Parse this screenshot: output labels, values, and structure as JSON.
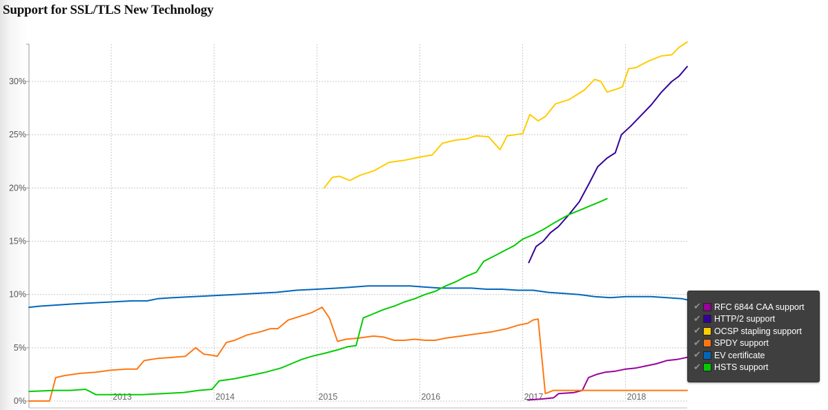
{
  "chart_data": {
    "type": "line",
    "title": "Support for SSL/TLS New Technology",
    "xlabel": "",
    "ylabel": "",
    "x_ticks": [
      "2013",
      "2014",
      "2015",
      "2016",
      "2017",
      "2018"
    ],
    "y_ticks": [
      "0%",
      "5%",
      "10%",
      "15%",
      "20%",
      "25%",
      "30%"
    ],
    "ylim": [
      0,
      33.5
    ],
    "xlim": [
      2012.2,
      2018.6
    ],
    "grid": true,
    "legend_position": "bottom-right",
    "series": [
      {
        "name": "RFC 6844 CAA support",
        "color": "#990099",
        "points": [
          [
            2017.05,
            0.1
          ],
          [
            2017.2,
            0.2
          ],
          [
            2017.3,
            0.3
          ],
          [
            2017.35,
            0.7
          ],
          [
            2017.5,
            0.8
          ],
          [
            2017.58,
            1.0
          ],
          [
            2017.64,
            2.2
          ],
          [
            2017.72,
            2.5
          ],
          [
            2017.8,
            2.7
          ],
          [
            2017.9,
            2.8
          ],
          [
            2018.0,
            3.0
          ],
          [
            2018.1,
            3.1
          ],
          [
            2018.2,
            3.3
          ],
          [
            2018.3,
            3.5
          ],
          [
            2018.4,
            3.8
          ],
          [
            2018.5,
            3.9
          ],
          [
            2018.6,
            4.1
          ]
        ]
      },
      {
        "name": "HTTP/2 support",
        "color": "#330099",
        "points": [
          [
            2017.06,
            13.0
          ],
          [
            2017.13,
            14.5
          ],
          [
            2017.2,
            15.0
          ],
          [
            2017.27,
            15.8
          ],
          [
            2017.35,
            16.4
          ],
          [
            2017.45,
            17.5
          ],
          [
            2017.55,
            18.7
          ],
          [
            2017.65,
            20.5
          ],
          [
            2017.73,
            22.0
          ],
          [
            2017.82,
            22.8
          ],
          [
            2017.9,
            23.3
          ],
          [
            2017.96,
            25.0
          ],
          [
            2018.05,
            25.8
          ],
          [
            2018.15,
            26.8
          ],
          [
            2018.25,
            27.8
          ],
          [
            2018.35,
            29.0
          ],
          [
            2018.45,
            30.0
          ],
          [
            2018.52,
            30.5
          ],
          [
            2018.6,
            31.4
          ]
        ]
      },
      {
        "name": "OCSP stapling support",
        "color": "#ffcc00",
        "points": [
          [
            2015.07,
            20.0
          ],
          [
            2015.15,
            21.0
          ],
          [
            2015.22,
            21.1
          ],
          [
            2015.32,
            20.7
          ],
          [
            2015.42,
            21.2
          ],
          [
            2015.55,
            21.6
          ],
          [
            2015.7,
            22.4
          ],
          [
            2015.85,
            22.6
          ],
          [
            2016.0,
            22.9
          ],
          [
            2016.12,
            23.1
          ],
          [
            2016.22,
            24.2
          ],
          [
            2016.35,
            24.5
          ],
          [
            2016.45,
            24.6
          ],
          [
            2016.55,
            24.9
          ],
          [
            2016.67,
            24.8
          ],
          [
            2016.78,
            23.6
          ],
          [
            2016.85,
            24.9
          ],
          [
            2017.0,
            25.1
          ],
          [
            2017.07,
            26.9
          ],
          [
            2017.15,
            26.3
          ],
          [
            2017.22,
            26.7
          ],
          [
            2017.32,
            27.9
          ],
          [
            2017.45,
            28.3
          ],
          [
            2017.6,
            29.2
          ],
          [
            2017.7,
            30.2
          ],
          [
            2017.76,
            30.0
          ],
          [
            2017.82,
            29.0
          ],
          [
            2017.92,
            29.3
          ],
          [
            2017.97,
            29.5
          ],
          [
            2018.03,
            31.2
          ],
          [
            2018.1,
            31.3
          ],
          [
            2018.22,
            31.9
          ],
          [
            2018.35,
            32.4
          ],
          [
            2018.45,
            32.5
          ],
          [
            2018.52,
            33.2
          ],
          [
            2018.6,
            33.7
          ]
        ]
      },
      {
        "name": "SPDY support",
        "color": "#ff7711",
        "points": [
          [
            2012.2,
            0.0
          ],
          [
            2012.4,
            0.0
          ],
          [
            2012.46,
            2.2
          ],
          [
            2012.55,
            2.4
          ],
          [
            2012.7,
            2.6
          ],
          [
            2012.85,
            2.7
          ],
          [
            2013.0,
            2.9
          ],
          [
            2013.15,
            3.0
          ],
          [
            2013.25,
            3.0
          ],
          [
            2013.32,
            3.8
          ],
          [
            2013.45,
            4.0
          ],
          [
            2013.6,
            4.1
          ],
          [
            2013.72,
            4.2
          ],
          [
            2013.82,
            5.0
          ],
          [
            2013.9,
            4.4
          ],
          [
            2013.98,
            4.3
          ],
          [
            2014.03,
            4.2
          ],
          [
            2014.12,
            5.5
          ],
          [
            2014.2,
            5.7
          ],
          [
            2014.32,
            6.2
          ],
          [
            2014.45,
            6.5
          ],
          [
            2014.55,
            6.8
          ],
          [
            2014.62,
            6.8
          ],
          [
            2014.72,
            7.6
          ],
          [
            2014.82,
            7.9
          ],
          [
            2014.95,
            8.3
          ],
          [
            2015.05,
            8.8
          ],
          [
            2015.12,
            7.8
          ],
          [
            2015.2,
            5.6
          ],
          [
            2015.28,
            5.8
          ],
          [
            2015.4,
            5.9
          ],
          [
            2015.55,
            6.1
          ],
          [
            2015.65,
            6.0
          ],
          [
            2015.75,
            5.7
          ],
          [
            2015.85,
            5.7
          ],
          [
            2015.95,
            5.8
          ],
          [
            2016.05,
            5.7
          ],
          [
            2016.15,
            5.7
          ],
          [
            2016.25,
            5.9
          ],
          [
            2016.4,
            6.1
          ],
          [
            2016.55,
            6.3
          ],
          [
            2016.7,
            6.5
          ],
          [
            2016.85,
            6.8
          ],
          [
            2016.95,
            7.1
          ],
          [
            2017.05,
            7.3
          ],
          [
            2017.1,
            7.6
          ],
          [
            2017.15,
            7.7
          ],
          [
            2017.22,
            0.7
          ],
          [
            2017.3,
            1.0
          ],
          [
            2017.45,
            1.0
          ],
          [
            2017.6,
            1.0
          ],
          [
            2017.75,
            1.0
          ],
          [
            2017.9,
            1.0
          ],
          [
            2018.0,
            1.0
          ],
          [
            2018.15,
            1.0
          ],
          [
            2018.3,
            1.0
          ],
          [
            2018.45,
            1.0
          ],
          [
            2018.6,
            1.0
          ]
        ]
      },
      {
        "name": "EV certificate",
        "color": "#0066bb",
        "points": [
          [
            2012.2,
            8.8
          ],
          [
            2012.3,
            8.9
          ],
          [
            2012.45,
            9.0
          ],
          [
            2012.6,
            9.1
          ],
          [
            2012.8,
            9.2
          ],
          [
            2013.0,
            9.3
          ],
          [
            2013.2,
            9.4
          ],
          [
            2013.35,
            9.4
          ],
          [
            2013.45,
            9.6
          ],
          [
            2013.6,
            9.7
          ],
          [
            2013.8,
            9.8
          ],
          [
            2014.0,
            9.9
          ],
          [
            2014.2,
            10.0
          ],
          [
            2014.4,
            10.1
          ],
          [
            2014.6,
            10.2
          ],
          [
            2014.8,
            10.4
          ],
          [
            2015.0,
            10.5
          ],
          [
            2015.2,
            10.6
          ],
          [
            2015.35,
            10.7
          ],
          [
            2015.5,
            10.8
          ],
          [
            2015.7,
            10.8
          ],
          [
            2015.9,
            10.8
          ],
          [
            2016.05,
            10.7
          ],
          [
            2016.2,
            10.6
          ],
          [
            2016.35,
            10.6
          ],
          [
            2016.5,
            10.6
          ],
          [
            2016.65,
            10.5
          ],
          [
            2016.8,
            10.5
          ],
          [
            2016.95,
            10.4
          ],
          [
            2017.1,
            10.4
          ],
          [
            2017.25,
            10.2
          ],
          [
            2017.4,
            10.1
          ],
          [
            2017.55,
            10.0
          ],
          [
            2017.7,
            9.8
          ],
          [
            2017.85,
            9.7
          ],
          [
            2018.0,
            9.8
          ],
          [
            2018.1,
            9.8
          ],
          [
            2018.25,
            9.8
          ],
          [
            2018.4,
            9.7
          ],
          [
            2018.55,
            9.6
          ],
          [
            2018.6,
            9.5
          ]
        ]
      },
      {
        "name": "HSTS support",
        "color": "#00cc00",
        "points": [
          [
            2012.2,
            0.9
          ],
          [
            2012.45,
            1.0
          ],
          [
            2012.6,
            1.0
          ],
          [
            2012.75,
            1.1
          ],
          [
            2012.85,
            0.6
          ],
          [
            2013.0,
            0.6
          ],
          [
            2013.15,
            0.6
          ],
          [
            2013.3,
            0.6
          ],
          [
            2013.5,
            0.7
          ],
          [
            2013.7,
            0.8
          ],
          [
            2013.85,
            1.0
          ],
          [
            2013.98,
            1.1
          ],
          [
            2014.05,
            1.9
          ],
          [
            2014.2,
            2.1
          ],
          [
            2014.35,
            2.4
          ],
          [
            2014.5,
            2.7
          ],
          [
            2014.65,
            3.1
          ],
          [
            2014.75,
            3.5
          ],
          [
            2014.85,
            3.9
          ],
          [
            2014.95,
            4.2
          ],
          [
            2015.08,
            4.5
          ],
          [
            2015.2,
            4.8
          ],
          [
            2015.3,
            5.1
          ],
          [
            2015.38,
            5.2
          ],
          [
            2015.45,
            7.8
          ],
          [
            2015.55,
            8.2
          ],
          [
            2015.65,
            8.6
          ],
          [
            2015.75,
            8.9
          ],
          [
            2015.85,
            9.3
          ],
          [
            2015.95,
            9.6
          ],
          [
            2016.05,
            10.0
          ],
          [
            2016.15,
            10.3
          ],
          [
            2016.25,
            10.8
          ],
          [
            2016.35,
            11.2
          ],
          [
            2016.45,
            11.7
          ],
          [
            2016.55,
            12.1
          ],
          [
            2016.62,
            13.1
          ],
          [
            2016.72,
            13.6
          ],
          [
            2016.82,
            14.1
          ],
          [
            2016.92,
            14.6
          ],
          [
            2017.0,
            15.2
          ],
          [
            2017.1,
            15.6
          ],
          [
            2017.2,
            16.1
          ],
          [
            2017.32,
            16.8
          ],
          [
            2017.45,
            17.5
          ],
          [
            2017.55,
            17.9
          ],
          [
            2017.65,
            18.3
          ],
          [
            2017.75,
            18.7
          ],
          [
            2017.82,
            19.0
          ]
        ]
      }
    ]
  }
}
